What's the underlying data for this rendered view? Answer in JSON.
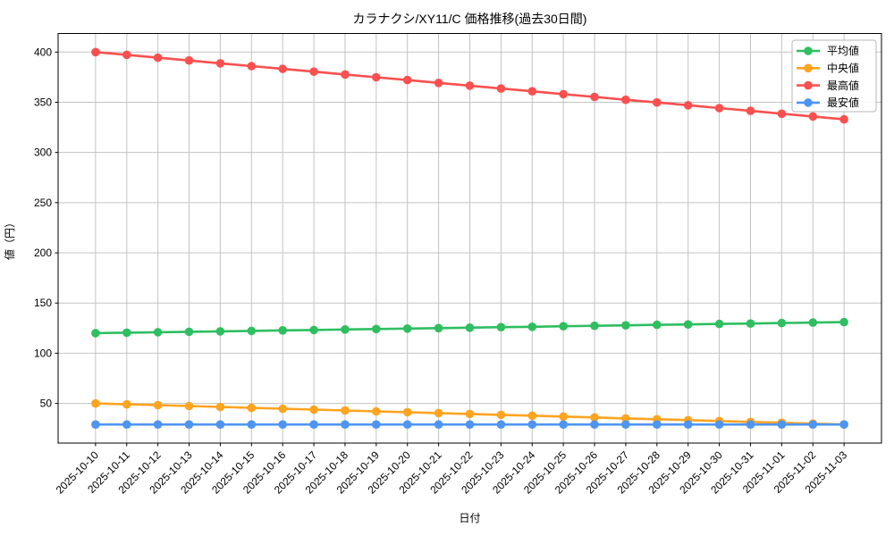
{
  "chart_data": {
    "type": "line",
    "title": "カラナクシ/XY11/C 価格推移(過去30日間)",
    "xlabel": "日付",
    "ylabel": "値（円）",
    "x": [
      "2025-10-10",
      "2025-10-11",
      "2025-10-12",
      "2025-10-13",
      "2025-10-14",
      "2025-10-15",
      "2025-10-16",
      "2025-10-17",
      "2025-10-18",
      "2025-10-19",
      "2025-10-20",
      "2025-10-21",
      "2025-10-22",
      "2025-10-23",
      "2025-10-24",
      "2025-10-25",
      "2025-10-26",
      "2025-10-27",
      "2025-10-28",
      "2025-10-29",
      "2025-10-30",
      "2025-10-31",
      "2025-11-01",
      "2025-11-02",
      "2025-11-03"
    ],
    "series": [
      {
        "id": "average",
        "name": "平均値",
        "color": "#2fbe60",
        "values": [
          120.0,
          120.5,
          120.9,
          121.4,
          121.8,
          122.3,
          122.8,
          123.2,
          123.7,
          124.1,
          124.6,
          125.0,
          125.5,
          126.0,
          126.4,
          126.9,
          127.3,
          127.8,
          128.3,
          128.7,
          129.2,
          129.6,
          130.1,
          130.5,
          131.0
        ]
      },
      {
        "id": "median",
        "name": "中央値",
        "color": "#ffa41f",
        "values": [
          50.0,
          49.1,
          48.3,
          47.4,
          46.5,
          45.6,
          44.8,
          43.9,
          43.0,
          42.1,
          41.3,
          40.4,
          39.5,
          38.6,
          37.8,
          36.9,
          36.0,
          35.1,
          34.3,
          33.4,
          32.5,
          31.6,
          30.8,
          29.9,
          29.0
        ]
      },
      {
        "id": "max",
        "name": "最高値",
        "color": "#f9504f",
        "values": [
          400.0,
          397.2,
          394.4,
          391.6,
          388.8,
          386.0,
          383.3,
          380.5,
          377.7,
          374.9,
          372.1,
          369.3,
          366.5,
          363.7,
          360.9,
          358.1,
          355.3,
          352.5,
          349.8,
          347.0,
          344.2,
          341.4,
          338.6,
          335.8,
          333.0
        ]
      },
      {
        "id": "min",
        "name": "最安値",
        "color": "#4e95f2",
        "values": [
          29.0,
          29.0,
          29.0,
          29.0,
          29.0,
          29.0,
          29.0,
          29.0,
          29.0,
          29.0,
          29.0,
          29.0,
          29.0,
          29.0,
          29.0,
          29.0,
          29.0,
          29.0,
          29.0,
          29.0,
          29.0,
          29.0,
          29.0,
          29.0,
          29.0
        ]
      }
    ],
    "ylim": [
      10.5,
      418.5
    ],
    "yticks": [
      50,
      100,
      150,
      200,
      250,
      300,
      350,
      400
    ],
    "grid": true,
    "legend_position": "upper right",
    "x_tick_rotation": 45
  }
}
